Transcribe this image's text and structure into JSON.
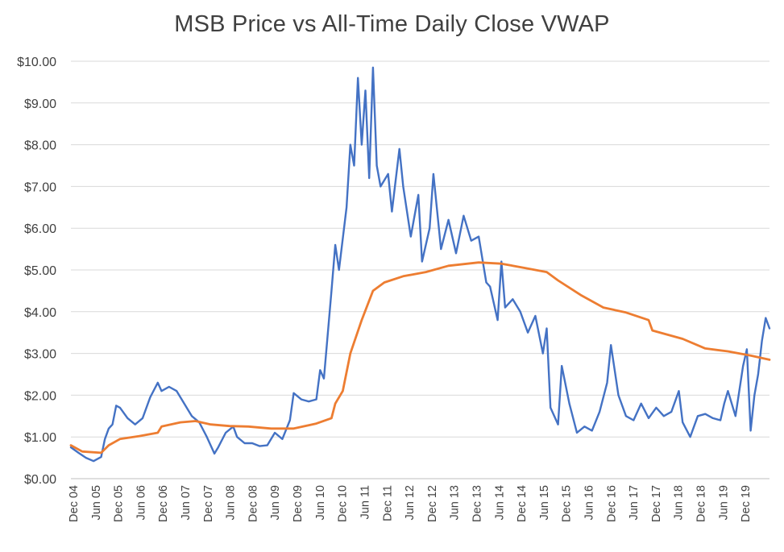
{
  "chart_data": {
    "type": "line",
    "title": "MSB Price vs All-Time Daily Close VWAP",
    "xlabel": "",
    "ylabel": "",
    "ylim": [
      0,
      10
    ],
    "y_ticks": [
      "$0.00",
      "$1.00",
      "$2.00",
      "$3.00",
      "$4.00",
      "$5.00",
      "$6.00",
      "$7.00",
      "$8.00",
      "$9.00",
      "$10.00"
    ],
    "x_ticks": [
      "Dec 04",
      "Jun 05",
      "Dec 05",
      "Jun 06",
      "Dec 06",
      "Jun 07",
      "Dec 07",
      "Jun 08",
      "Dec 08",
      "Jun 09",
      "Dec 09",
      "Jun 10",
      "Dec 10",
      "Jun 11",
      "Dec 11",
      "Jun 12",
      "Dec 12",
      "Jun 13",
      "Dec 13",
      "Jun 14",
      "Dec 14",
      "Jun 15",
      "Dec 15",
      "Jun 16",
      "Dec 16",
      "Jun 17",
      "Dec 17",
      "Jun 18",
      "Dec 18",
      "Jun 19",
      "Dec 19"
    ],
    "x_range": [
      "2004-12",
      "2020-05"
    ],
    "grid": "horizontal",
    "legend": "none",
    "series": [
      {
        "color": "#4472C4",
        "points": [
          [
            "2004-12",
            0.75
          ],
          [
            "2005-02",
            0.62
          ],
          [
            "2005-04",
            0.5
          ],
          [
            "2005-06",
            0.42
          ],
          [
            "2005-08",
            0.52
          ],
          [
            "2005-09",
            0.95
          ],
          [
            "2005-10",
            1.2
          ],
          [
            "2005-11",
            1.3
          ],
          [
            "2005-12",
            1.75
          ],
          [
            "2006-01",
            1.7
          ],
          [
            "2006-03",
            1.45
          ],
          [
            "2006-05",
            1.3
          ],
          [
            "2006-07",
            1.45
          ],
          [
            "2006-09",
            1.95
          ],
          [
            "2006-11",
            2.3
          ],
          [
            "2006-12",
            2.1
          ],
          [
            "2007-02",
            2.2
          ],
          [
            "2007-04",
            2.1
          ],
          [
            "2007-06",
            1.8
          ],
          [
            "2007-08",
            1.5
          ],
          [
            "2007-10",
            1.35
          ],
          [
            "2007-12",
            1.0
          ],
          [
            "2008-02",
            0.6
          ],
          [
            "2008-03",
            0.75
          ],
          [
            "2008-05",
            1.1
          ],
          [
            "2008-07",
            1.25
          ],
          [
            "2008-08",
            1.0
          ],
          [
            "2008-10",
            0.85
          ],
          [
            "2008-12",
            0.85
          ],
          [
            "2009-02",
            0.78
          ],
          [
            "2009-04",
            0.8
          ],
          [
            "2009-06",
            1.1
          ],
          [
            "2009-08",
            0.95
          ],
          [
            "2009-10",
            1.4
          ],
          [
            "2009-11",
            2.05
          ],
          [
            "2010-01",
            1.9
          ],
          [
            "2010-03",
            1.85
          ],
          [
            "2010-05",
            1.9
          ],
          [
            "2010-06",
            2.6
          ],
          [
            "2010-07",
            2.4
          ],
          [
            "2010-09",
            4.5
          ],
          [
            "2010-10",
            5.6
          ],
          [
            "2010-11",
            5.0
          ],
          [
            "2011-01",
            6.5
          ],
          [
            "2011-02",
            8.0
          ],
          [
            "2011-03",
            7.5
          ],
          [
            "2011-04",
            9.6
          ],
          [
            "2011-05",
            8.0
          ],
          [
            "2011-06",
            9.3
          ],
          [
            "2011-07",
            7.2
          ],
          [
            "2011-08",
            9.85
          ],
          [
            "2011-09",
            7.5
          ],
          [
            "2011-10",
            7.0
          ],
          [
            "2011-12",
            7.3
          ],
          [
            "2012-01",
            6.4
          ],
          [
            "2012-03",
            7.9
          ],
          [
            "2012-04",
            7.0
          ],
          [
            "2012-06",
            5.8
          ],
          [
            "2012-08",
            6.8
          ],
          [
            "2012-09",
            5.2
          ],
          [
            "2012-11",
            6.0
          ],
          [
            "2012-12",
            7.3
          ],
          [
            "2013-02",
            5.5
          ],
          [
            "2013-04",
            6.2
          ],
          [
            "2013-06",
            5.4
          ],
          [
            "2013-08",
            6.3
          ],
          [
            "2013-10",
            5.7
          ],
          [
            "2013-12",
            5.8
          ],
          [
            "2014-02",
            4.7
          ],
          [
            "2014-03",
            4.6
          ],
          [
            "2014-05",
            3.8
          ],
          [
            "2014-06",
            5.2
          ],
          [
            "2014-07",
            4.1
          ],
          [
            "2014-09",
            4.3
          ],
          [
            "2014-11",
            4.0
          ],
          [
            "2015-01",
            3.5
          ],
          [
            "2015-03",
            3.9
          ],
          [
            "2015-05",
            3.0
          ],
          [
            "2015-06",
            3.6
          ],
          [
            "2015-07",
            1.7
          ],
          [
            "2015-09",
            1.3
          ],
          [
            "2015-10",
            2.7
          ],
          [
            "2015-12",
            1.8
          ],
          [
            "2016-02",
            1.1
          ],
          [
            "2016-04",
            1.25
          ],
          [
            "2016-06",
            1.15
          ],
          [
            "2016-08",
            1.6
          ],
          [
            "2016-10",
            2.3
          ],
          [
            "2016-11",
            3.2
          ],
          [
            "2017-01",
            2.0
          ],
          [
            "2017-03",
            1.5
          ],
          [
            "2017-05",
            1.4
          ],
          [
            "2017-07",
            1.8
          ],
          [
            "2017-09",
            1.45
          ],
          [
            "2017-11",
            1.7
          ],
          [
            "2018-01",
            1.5
          ],
          [
            "2018-03",
            1.6
          ],
          [
            "2018-05",
            2.1
          ],
          [
            "2018-06",
            1.35
          ],
          [
            "2018-08",
            1.0
          ],
          [
            "2018-10",
            1.5
          ],
          [
            "2018-12",
            1.55
          ],
          [
            "2019-02",
            1.45
          ],
          [
            "2019-04",
            1.4
          ],
          [
            "2019-05",
            1.8
          ],
          [
            "2019-06",
            2.1
          ],
          [
            "2019-08",
            1.5
          ],
          [
            "2019-10",
            2.7
          ],
          [
            "2019-11",
            3.1
          ],
          [
            "2019-12",
            1.15
          ],
          [
            "2020-01",
            2.0
          ],
          [
            "2020-02",
            2.5
          ],
          [
            "2020-03",
            3.3
          ],
          [
            "2020-04",
            3.85
          ],
          [
            "2020-05",
            3.6
          ]
        ]
      },
      {
        "color": "#ED7D31",
        "points": [
          [
            "2004-12",
            0.8
          ],
          [
            "2005-03",
            0.65
          ],
          [
            "2005-08",
            0.62
          ],
          [
            "2005-10",
            0.8
          ],
          [
            "2006-01",
            0.95
          ],
          [
            "2006-06",
            1.02
          ],
          [
            "2006-11",
            1.1
          ],
          [
            "2006-12",
            1.25
          ],
          [
            "2007-05",
            1.35
          ],
          [
            "2007-09",
            1.38
          ],
          [
            "2008-01",
            1.3
          ],
          [
            "2008-06",
            1.26
          ],
          [
            "2008-11",
            1.25
          ],
          [
            "2009-05",
            1.2
          ],
          [
            "2009-11",
            1.2
          ],
          [
            "2010-05",
            1.32
          ],
          [
            "2010-09",
            1.45
          ],
          [
            "2010-10",
            1.8
          ],
          [
            "2010-12",
            2.1
          ],
          [
            "2011-02",
            3.0
          ],
          [
            "2011-05",
            3.8
          ],
          [
            "2011-08",
            4.5
          ],
          [
            "2011-11",
            4.7
          ],
          [
            "2012-04",
            4.85
          ],
          [
            "2012-10",
            4.95
          ],
          [
            "2013-04",
            5.1
          ],
          [
            "2013-12",
            5.18
          ],
          [
            "2014-06",
            5.15
          ],
          [
            "2014-12",
            5.05
          ],
          [
            "2015-06",
            4.95
          ],
          [
            "2015-09",
            4.75
          ],
          [
            "2016-03",
            4.4
          ],
          [
            "2016-09",
            4.1
          ],
          [
            "2017-03",
            3.98
          ],
          [
            "2017-09",
            3.8
          ],
          [
            "2017-10",
            3.55
          ],
          [
            "2018-06",
            3.35
          ],
          [
            "2018-12",
            3.12
          ],
          [
            "2019-06",
            3.05
          ],
          [
            "2019-12",
            2.95
          ],
          [
            "2020-05",
            2.85
          ]
        ]
      }
    ]
  }
}
